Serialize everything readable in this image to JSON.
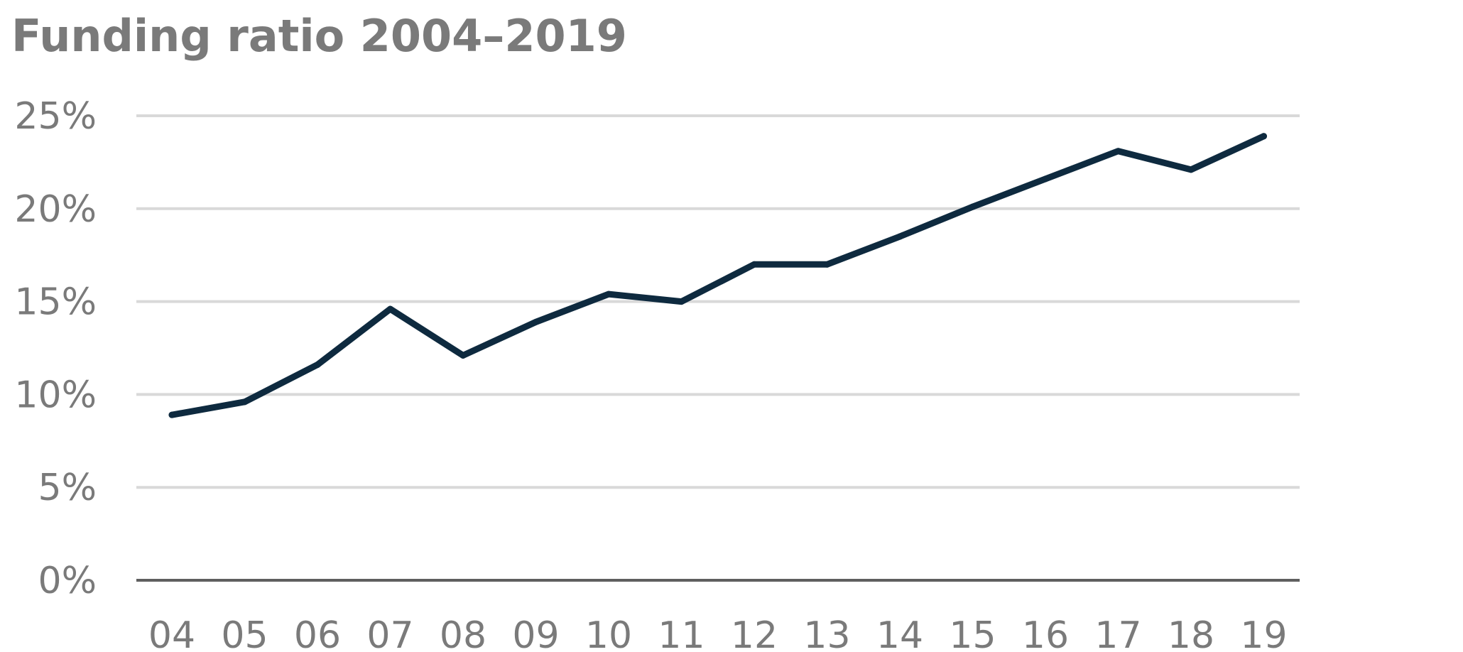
{
  "chart_data": {
    "type": "line",
    "title": "Funding ratio 2004–2019",
    "xlabel": "",
    "ylabel": "",
    "categories": [
      "04",
      "05",
      "06",
      "07",
      "08",
      "09",
      "10",
      "11",
      "12",
      "13",
      "14",
      "15",
      "16",
      "17",
      "18",
      "19"
    ],
    "series": [
      {
        "values": [
          8.9,
          9.6,
          11.6,
          14.6,
          12.1,
          13.9,
          15.4,
          15.0,
          17.0,
          17.0,
          18.5,
          20.1,
          21.6,
          23.1,
          22.1,
          23.9
        ],
        "color": "#0e2a3f"
      }
    ],
    "ylim": [
      0,
      25
    ],
    "yticks": [
      0,
      5,
      10,
      15,
      20,
      25
    ],
    "ytick_labels": [
      "0%",
      "5%",
      "10%",
      "15%",
      "20%",
      "25%"
    ],
    "grid": true,
    "colors": {
      "grid": "#d9d9d9",
      "baseline": "#5f5f5f",
      "text": "#7a7a7a",
      "line": "#0e2a3f"
    }
  }
}
